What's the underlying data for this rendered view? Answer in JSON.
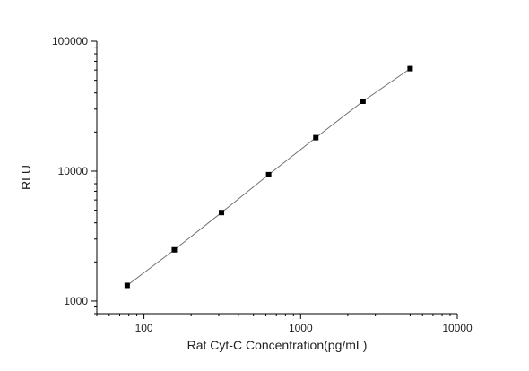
{
  "chart_data": {
    "type": "scatter",
    "title": "",
    "xlabel": "Rat Cyt-C Concentration(pg/mL)",
    "ylabel": "RLU",
    "x_scale": "log",
    "y_scale": "log",
    "xlim": [
      50,
      10000
    ],
    "ylim": [
      800,
      100000
    ],
    "x_ticks": [
      100,
      1000,
      10000
    ],
    "x_tick_labels": [
      "100",
      "1000",
      "10000"
    ],
    "y_ticks": [
      1000,
      10000,
      100000
    ],
    "y_tick_labels": [
      "1000",
      "10000",
      "100000"
    ],
    "grid": false,
    "legend": "none",
    "fit_line": true,
    "series": [
      {
        "x": [
          78.13,
          156.25,
          312.5,
          625,
          1250,
          2500,
          5000
        ],
        "y": [
          1320,
          2480,
          4800,
          9400,
          18100,
          34500,
          61500
        ]
      }
    ],
    "colors": {
      "marker": "#000000",
      "line": "#707070",
      "axis": "#000000"
    }
  }
}
